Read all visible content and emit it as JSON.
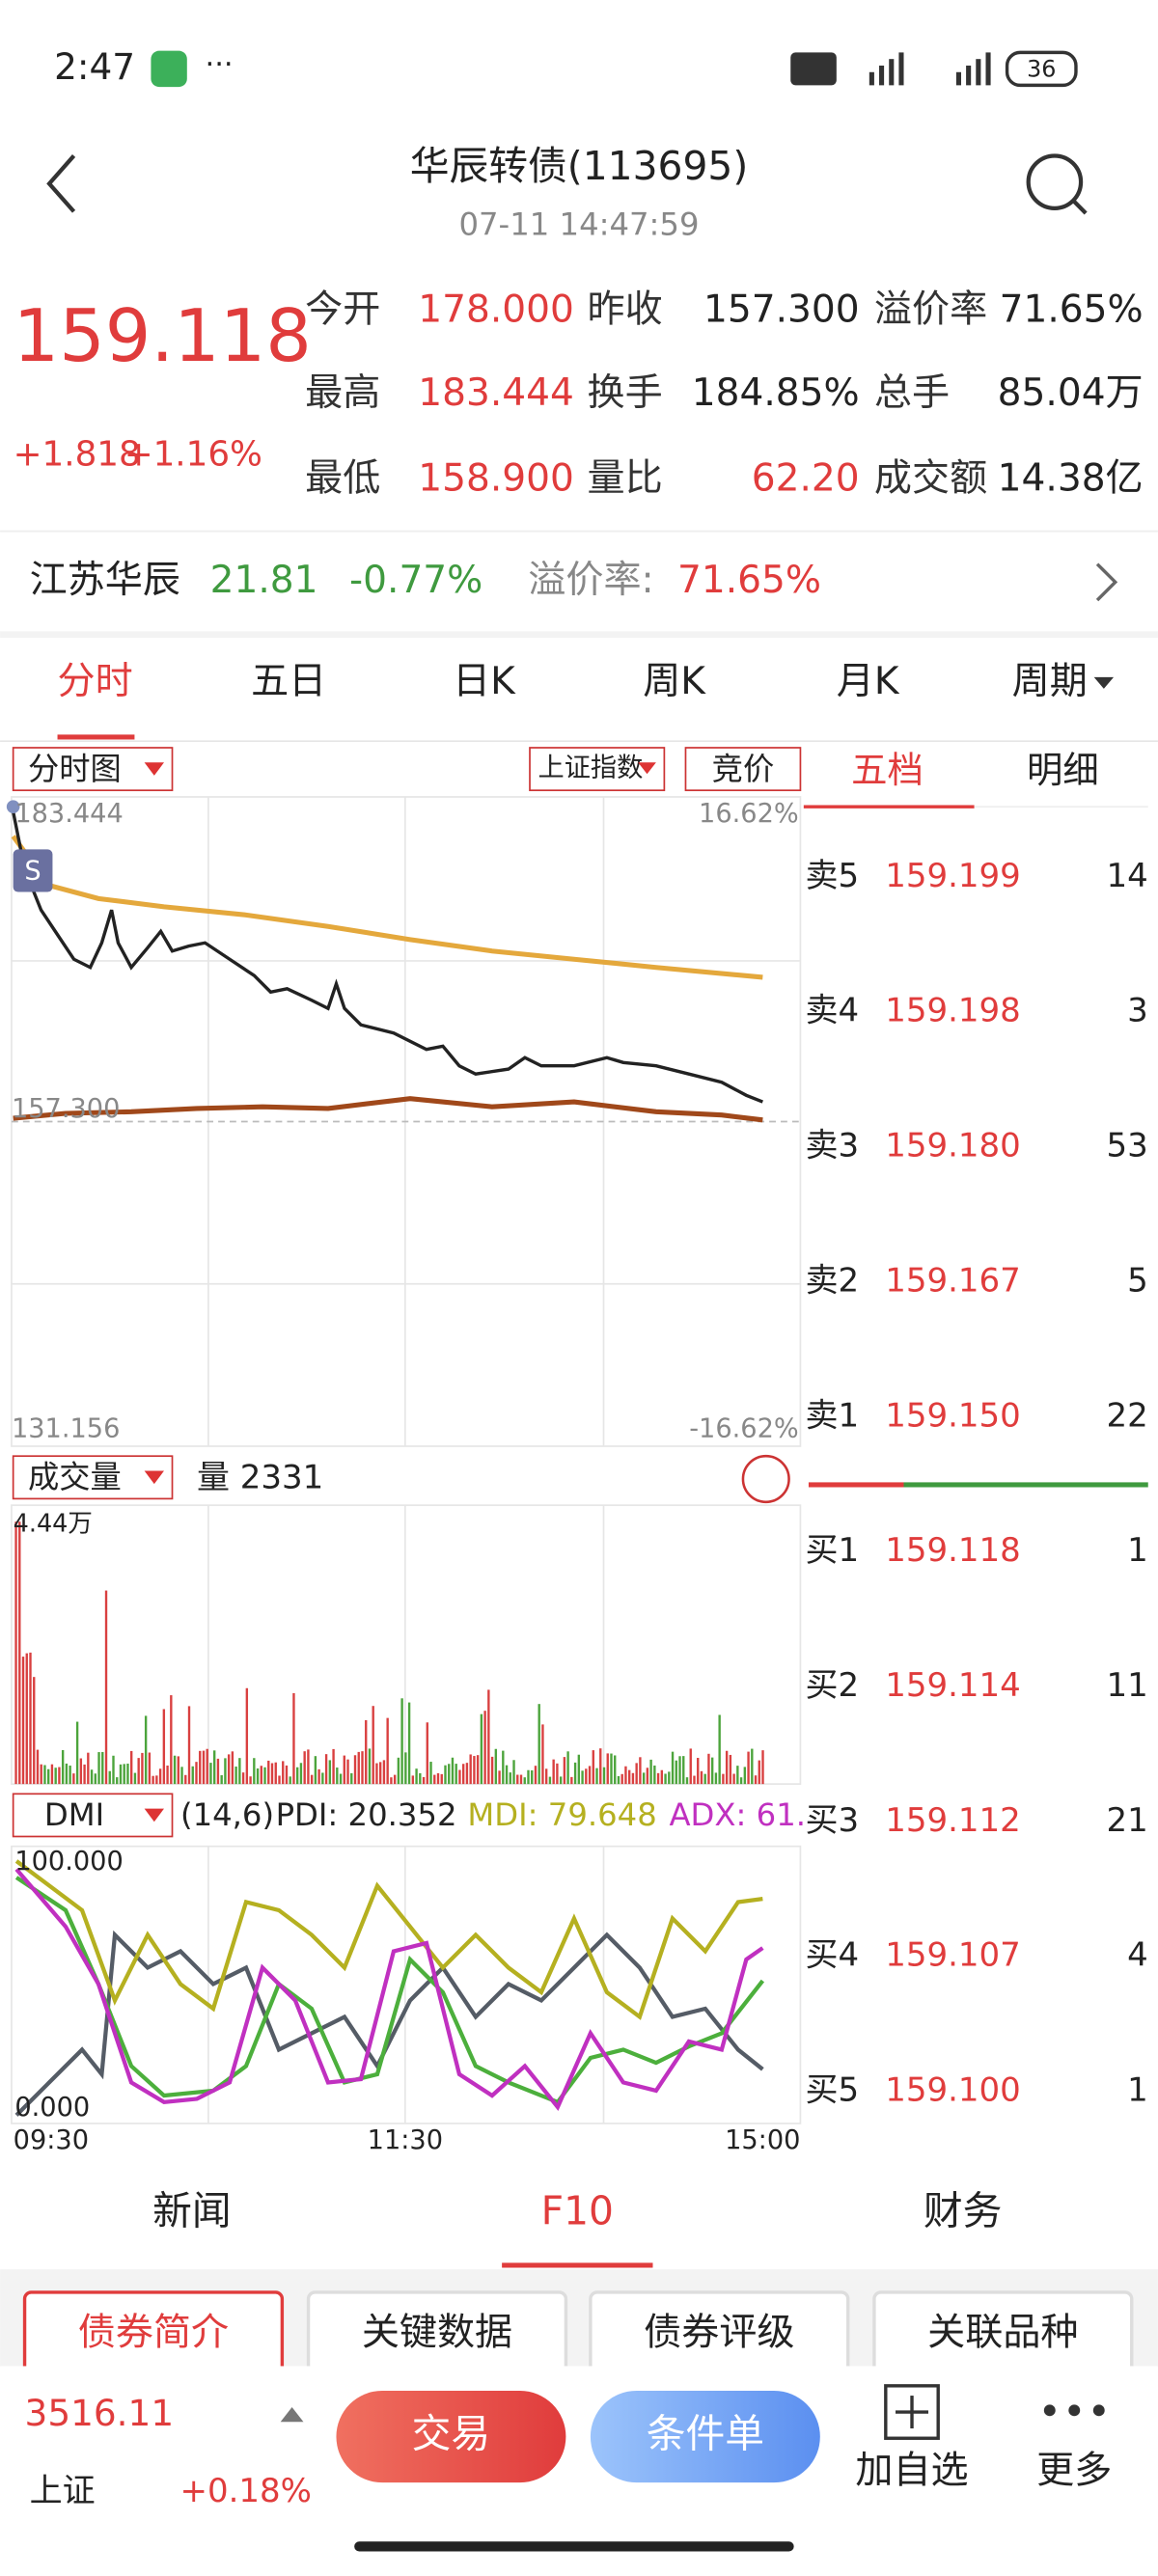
{
  "status": {
    "time": "2:47",
    "battery": "36"
  },
  "header": {
    "title": "华辰转债(113695)",
    "subtitle": "07-11 14:47:59"
  },
  "quote": {
    "price": "159.118",
    "change": "+1.818",
    "change_pct": "+1.16%",
    "fields": [
      {
        "label": "今开",
        "value": "178.000"
      },
      {
        "label": "昨收",
        "value": "157.300"
      },
      {
        "label": "溢价率",
        "value": "71.65%"
      },
      {
        "label": "最高",
        "value": "183.444"
      },
      {
        "label": "换手",
        "value": "184.85%"
      },
      {
        "label": "总手",
        "value": "85.04万"
      },
      {
        "label": "最低",
        "value": "158.900"
      },
      {
        "label": "量比",
        "value": "62.20"
      },
      {
        "label": "成交额",
        "value": "14.38亿"
      }
    ]
  },
  "stock": {
    "name": "江苏华辰",
    "price": "21.81",
    "change": "-0.77%",
    "premium_label": "溢价率:",
    "premium": "71.65%"
  },
  "tabs": [
    "分时",
    "五日",
    "日K",
    "周K",
    "月K",
    "周期"
  ],
  "chart": {
    "selector": "分时图",
    "index": "上证指数",
    "auction": "竞价",
    "marker": "S",
    "labels": {
      "high": "183.444",
      "high_pct": "16.62%",
      "prev": "157.300",
      "low": "131.156",
      "low_pct": "-16.62%"
    }
  },
  "volume": {
    "selector": "成交量",
    "current": "量 2331",
    "max": "4.44万"
  },
  "dmi": {
    "selector": "DMI",
    "params": "(14,6)",
    "pdi": "PDI: 20.352",
    "mdi": "MDI: 79.648",
    "adx": "ADX: 61.",
    "max": "100.000",
    "min": "0.000"
  },
  "times": [
    "09:30",
    "11:30",
    "15:00"
  ],
  "orderbook": {
    "tabs": [
      "五档",
      "明细"
    ],
    "asks": [
      {
        "label": "卖5",
        "price": "159.199",
        "volume": 14
      },
      {
        "label": "卖4",
        "price": "159.198",
        "volume": 3
      },
      {
        "label": "卖3",
        "price": "159.180",
        "volume": 53
      },
      {
        "label": "卖2",
        "price": "159.167",
        "volume": 5
      },
      {
        "label": "卖1",
        "price": "159.150",
        "volume": 22
      }
    ],
    "bids": [
      {
        "label": "买1",
        "price": "159.118",
        "volume": 1
      },
      {
        "label": "买2",
        "price": "159.114",
        "volume": 11
      },
      {
        "label": "买3",
        "price": "159.112",
        "volume": 21
      },
      {
        "label": "买4",
        "price": "159.107",
        "volume": 4
      },
      {
        "label": "买5",
        "price": "159.100",
        "volume": 1
      }
    ]
  },
  "bottom_tabs": [
    "新闻",
    "F10",
    "财务"
  ],
  "sub_tabs": [
    "债券简介",
    "关键数据",
    "债券评级",
    "关联品种"
  ],
  "footer": {
    "index_value": "3516.11",
    "index_name": "上证",
    "index_change": "+0.18%",
    "buttons": [
      "交易",
      "条件单",
      "加自选",
      "更多"
    ]
  }
}
